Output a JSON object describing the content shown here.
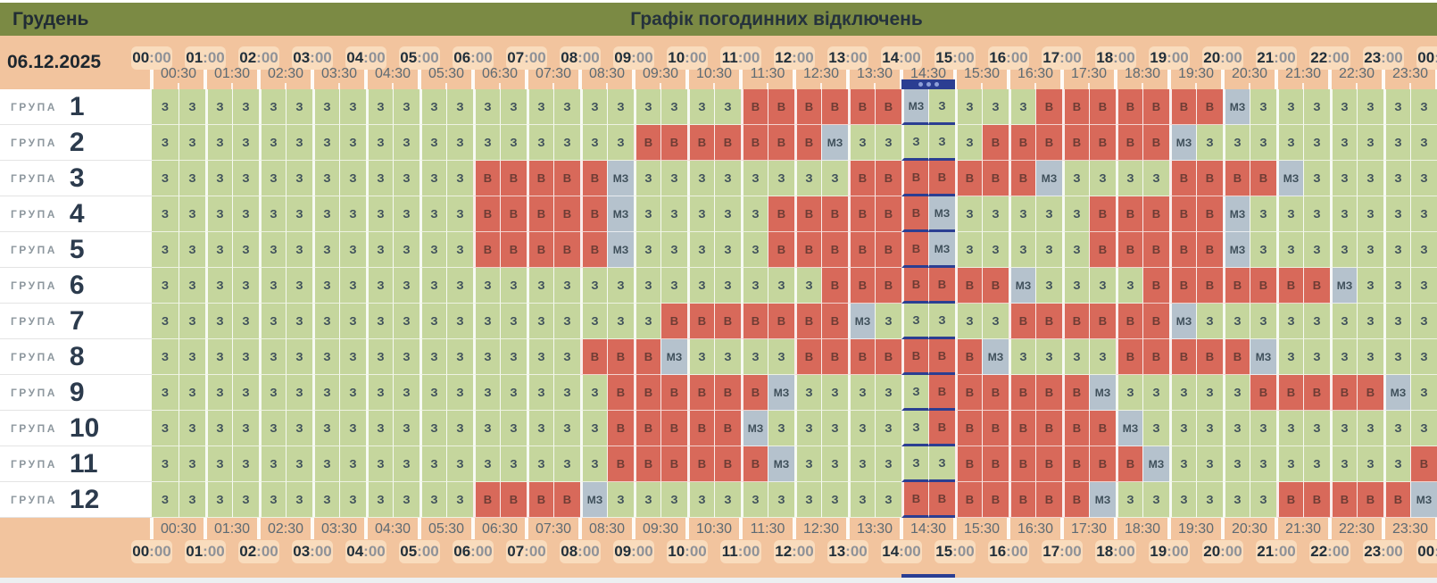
{
  "title_bar": {
    "month": "Грудень",
    "title": "Графік погодинних відключень"
  },
  "header": {
    "date": "06.12.2025",
    "hours": [
      "00",
      "01",
      "02",
      "03",
      "04",
      "05",
      "06",
      "07",
      "08",
      "09",
      "10",
      "11",
      "12",
      "13",
      "14",
      "15",
      "16",
      "17",
      "18",
      "19",
      "20",
      "21",
      "22",
      "23",
      "00"
    ],
    "hour_suffix": ":00",
    "half_hours": [
      "00:30",
      "01:30",
      "02:30",
      "03:30",
      "04:30",
      "05:30",
      "06:30",
      "07:30",
      "08:30",
      "09:30",
      "10:30",
      "11:30",
      "12:30",
      "13:30",
      "14:30",
      "15:30",
      "16:30",
      "17:30",
      "18:30",
      "19:30",
      "20:30",
      "21:30",
      "22:30",
      "23:30"
    ]
  },
  "marker": {
    "half_hour": "14:30",
    "columns": [
      28,
      29
    ],
    "icon": "ellipsis-dots"
  },
  "groups": {
    "label": "ГРУПА",
    "rows": [
      {
        "number": "1",
        "runs": [
          [
            "З",
            22
          ],
          [
            "В",
            6
          ],
          [
            "МЗ",
            1
          ],
          [
            "З",
            4
          ],
          [
            "В",
            7
          ],
          [
            "МЗ",
            1
          ],
          [
            "З",
            7
          ]
        ]
      },
      {
        "number": "2",
        "runs": [
          [
            "З",
            18
          ],
          [
            "В",
            7
          ],
          [
            "МЗ",
            1
          ],
          [
            "З",
            5
          ],
          [
            "В",
            7
          ],
          [
            "МЗ",
            1
          ],
          [
            "З",
            9
          ]
        ]
      },
      {
        "number": "3",
        "runs": [
          [
            "З",
            12
          ],
          [
            "В",
            5
          ],
          [
            "МЗ",
            1
          ],
          [
            "З",
            8
          ],
          [
            "В",
            7
          ],
          [
            "МЗ",
            1
          ],
          [
            "З",
            4
          ],
          [
            "В",
            4
          ],
          [
            "МЗ",
            1
          ],
          [
            "З",
            5
          ]
        ]
      },
      {
        "number": "4",
        "runs": [
          [
            "З",
            12
          ],
          [
            "В",
            5
          ],
          [
            "МЗ",
            1
          ],
          [
            "З",
            5
          ],
          [
            "В",
            6
          ],
          [
            "МЗ",
            1
          ],
          [
            "З",
            5
          ],
          [
            "В",
            5
          ],
          [
            "МЗ",
            1
          ],
          [
            "З",
            7
          ]
        ]
      },
      {
        "number": "5",
        "runs": [
          [
            "З",
            12
          ],
          [
            "В",
            5
          ],
          [
            "МЗ",
            1
          ],
          [
            "З",
            5
          ],
          [
            "В",
            6
          ],
          [
            "МЗ",
            1
          ],
          [
            "З",
            5
          ],
          [
            "В",
            5
          ],
          [
            "МЗ",
            1
          ],
          [
            "З",
            7
          ]
        ]
      },
      {
        "number": "6",
        "runs": [
          [
            "З",
            25
          ],
          [
            "В",
            7
          ],
          [
            "МЗ",
            1
          ],
          [
            "З",
            4
          ],
          [
            "В",
            7
          ],
          [
            "МЗ",
            1
          ],
          [
            "З",
            3
          ]
        ]
      },
      {
        "number": "7",
        "runs": [
          [
            "З",
            19
          ],
          [
            "В",
            7
          ],
          [
            "МЗ",
            1
          ],
          [
            "З",
            5
          ],
          [
            "В",
            6
          ],
          [
            "МЗ",
            1
          ],
          [
            "З",
            9
          ]
        ]
      },
      {
        "number": "8",
        "runs": [
          [
            "З",
            16
          ],
          [
            "В",
            3
          ],
          [
            "МЗ",
            1
          ],
          [
            "З",
            4
          ],
          [
            "В",
            7
          ],
          [
            "МЗ",
            1
          ],
          [
            "З",
            4
          ],
          [
            "В",
            5
          ],
          [
            "МЗ",
            1
          ],
          [
            "З",
            6
          ]
        ]
      },
      {
        "number": "9",
        "runs": [
          [
            "З",
            17
          ],
          [
            "В",
            6
          ],
          [
            "МЗ",
            1
          ],
          [
            "З",
            5
          ],
          [
            "В",
            6
          ],
          [
            "МЗ",
            1
          ],
          [
            "З",
            5
          ],
          [
            "В",
            5
          ],
          [
            "МЗ",
            1
          ],
          [
            "З",
            1
          ]
        ]
      },
      {
        "number": "10",
        "runs": [
          [
            "З",
            17
          ],
          [
            "В",
            5
          ],
          [
            "МЗ",
            1
          ],
          [
            "З",
            6
          ],
          [
            "В",
            7
          ],
          [
            "МЗ",
            1
          ],
          [
            "З",
            11
          ]
        ]
      },
      {
        "number": "11",
        "runs": [
          [
            "З",
            17
          ],
          [
            "В",
            6
          ],
          [
            "МЗ",
            1
          ],
          [
            "З",
            6
          ],
          [
            "В",
            7
          ],
          [
            "МЗ",
            1
          ],
          [
            "З",
            9
          ],
          [
            "В",
            1
          ]
        ]
      },
      {
        "number": "12",
        "runs": [
          [
            "З",
            12
          ],
          [
            "В",
            4
          ],
          [
            "МЗ",
            1
          ],
          [
            "З",
            11
          ],
          [
            "В",
            7
          ],
          [
            "МЗ",
            1
          ],
          [
            "З",
            6
          ],
          [
            "В",
            5
          ],
          [
            "МЗ",
            1
          ]
        ]
      }
    ]
  },
  "colors": {
    "title_bar": "#7b8a44",
    "time_band": "#f2c49e",
    "hour_pill": "#f9dcbd",
    "powered_cell": "#c5d69d",
    "outage_cell": "#d8695a",
    "possible_cell": "#b5c2cd",
    "marker": "#2b3e92"
  }
}
